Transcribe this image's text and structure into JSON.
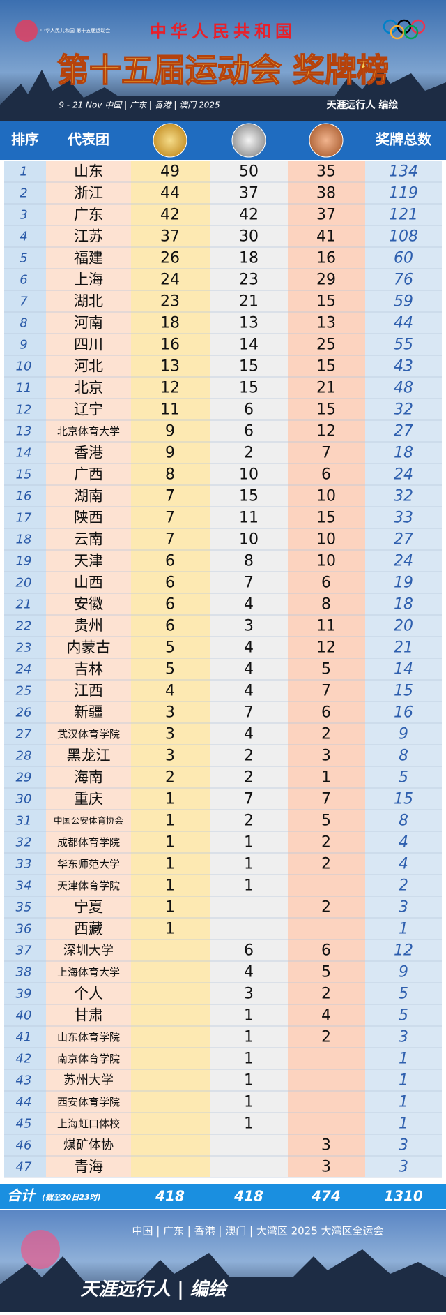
{
  "header": {
    "logo_text": "中华人民共和国 第十五届运动会",
    "country": "中华人民共和国",
    "title": "第十五届运动会 奖牌榜",
    "dates": "9 - 21 Nov 中国 | 广东 | 香港 | 澳门 2025",
    "author": "天涯远行人 编绘"
  },
  "table": {
    "columns": [
      "排序",
      "代表团",
      "奖牌总数"
    ],
    "rows": [
      [
        1,
        "山东",
        49,
        50,
        35,
        134
      ],
      [
        2,
        "浙江",
        44,
        37,
        38,
        119
      ],
      [
        3,
        "广东",
        42,
        42,
        37,
        121
      ],
      [
        4,
        "江苏",
        37,
        30,
        41,
        108
      ],
      [
        5,
        "福建",
        26,
        18,
        16,
        60
      ],
      [
        6,
        "上海",
        24,
        23,
        29,
        76
      ],
      [
        7,
        "湖北",
        23,
        21,
        15,
        59
      ],
      [
        8,
        "河南",
        18,
        13,
        13,
        44
      ],
      [
        9,
        "四川",
        16,
        14,
        25,
        55
      ],
      [
        10,
        "河北",
        13,
        15,
        15,
        43
      ],
      [
        11,
        "北京",
        12,
        15,
        21,
        48
      ],
      [
        12,
        "辽宁",
        11,
        6,
        15,
        32
      ],
      [
        13,
        "北京体育大学",
        9,
        6,
        12,
        27
      ],
      [
        14,
        "香港",
        9,
        2,
        7,
        18
      ],
      [
        15,
        "广西",
        8,
        10,
        6,
        24
      ],
      [
        16,
        "湖南",
        7,
        15,
        10,
        32
      ],
      [
        17,
        "陕西",
        7,
        11,
        15,
        33
      ],
      [
        18,
        "云南",
        7,
        10,
        10,
        27
      ],
      [
        19,
        "天津",
        6,
        8,
        10,
        24
      ],
      [
        20,
        "山西",
        6,
        7,
        6,
        19
      ],
      [
        21,
        "安徽",
        6,
        4,
        8,
        18
      ],
      [
        22,
        "贵州",
        6,
        3,
        11,
        20
      ],
      [
        23,
        "内蒙古",
        5,
        4,
        12,
        21
      ],
      [
        24,
        "吉林",
        5,
        4,
        5,
        14
      ],
      [
        25,
        "江西",
        4,
        4,
        7,
        15
      ],
      [
        26,
        "新疆",
        3,
        7,
        6,
        16
      ],
      [
        27,
        "武汉体育学院",
        3,
        4,
        2,
        9
      ],
      [
        28,
        "黑龙江",
        3,
        2,
        3,
        8
      ],
      [
        29,
        "海南",
        2,
        2,
        1,
        5
      ],
      [
        30,
        "重庆",
        1,
        7,
        7,
        15
      ],
      [
        31,
        "中国公安体育协会",
        1,
        2,
        5,
        8
      ],
      [
        32,
        "成都体育学院",
        1,
        1,
        2,
        4
      ],
      [
        33,
        "华东师范大学",
        1,
        1,
        2,
        4
      ],
      [
        34,
        "天津体育学院",
        1,
        1,
        null,
        2
      ],
      [
        35,
        "宁夏",
        1,
        null,
        2,
        3
      ],
      [
        36,
        "西藏",
        1,
        null,
        null,
        1
      ],
      [
        37,
        "深圳大学",
        null,
        6,
        6,
        12
      ],
      [
        38,
        "上海体育大学",
        null,
        4,
        5,
        9
      ],
      [
        39,
        "个人",
        null,
        3,
        2,
        5
      ],
      [
        40,
        "甘肃",
        null,
        1,
        4,
        5
      ],
      [
        41,
        "山东体育学院",
        null,
        1,
        2,
        3
      ],
      [
        42,
        "南京体育学院",
        null,
        1,
        null,
        1
      ],
      [
        43,
        "苏州大学",
        null,
        1,
        null,
        1
      ],
      [
        44,
        "西安体育学院",
        null,
        1,
        null,
        1
      ],
      [
        45,
        "上海虹口体校",
        null,
        1,
        null,
        1
      ],
      [
        46,
        "煤矿体协",
        null,
        null,
        3,
        3
      ],
      [
        47,
        "青海",
        null,
        null,
        3,
        3
      ]
    ],
    "total": {
      "label": "合计",
      "note": "(截至20日23时)",
      "values": [
        418,
        418,
        474,
        1310
      ]
    }
  },
  "footer": {
    "line": "中国 | 广东 | 香港 | 澳门 | 大湾区 2025 大湾区全运会",
    "author": "天涯远行人 | 编绘"
  }
}
